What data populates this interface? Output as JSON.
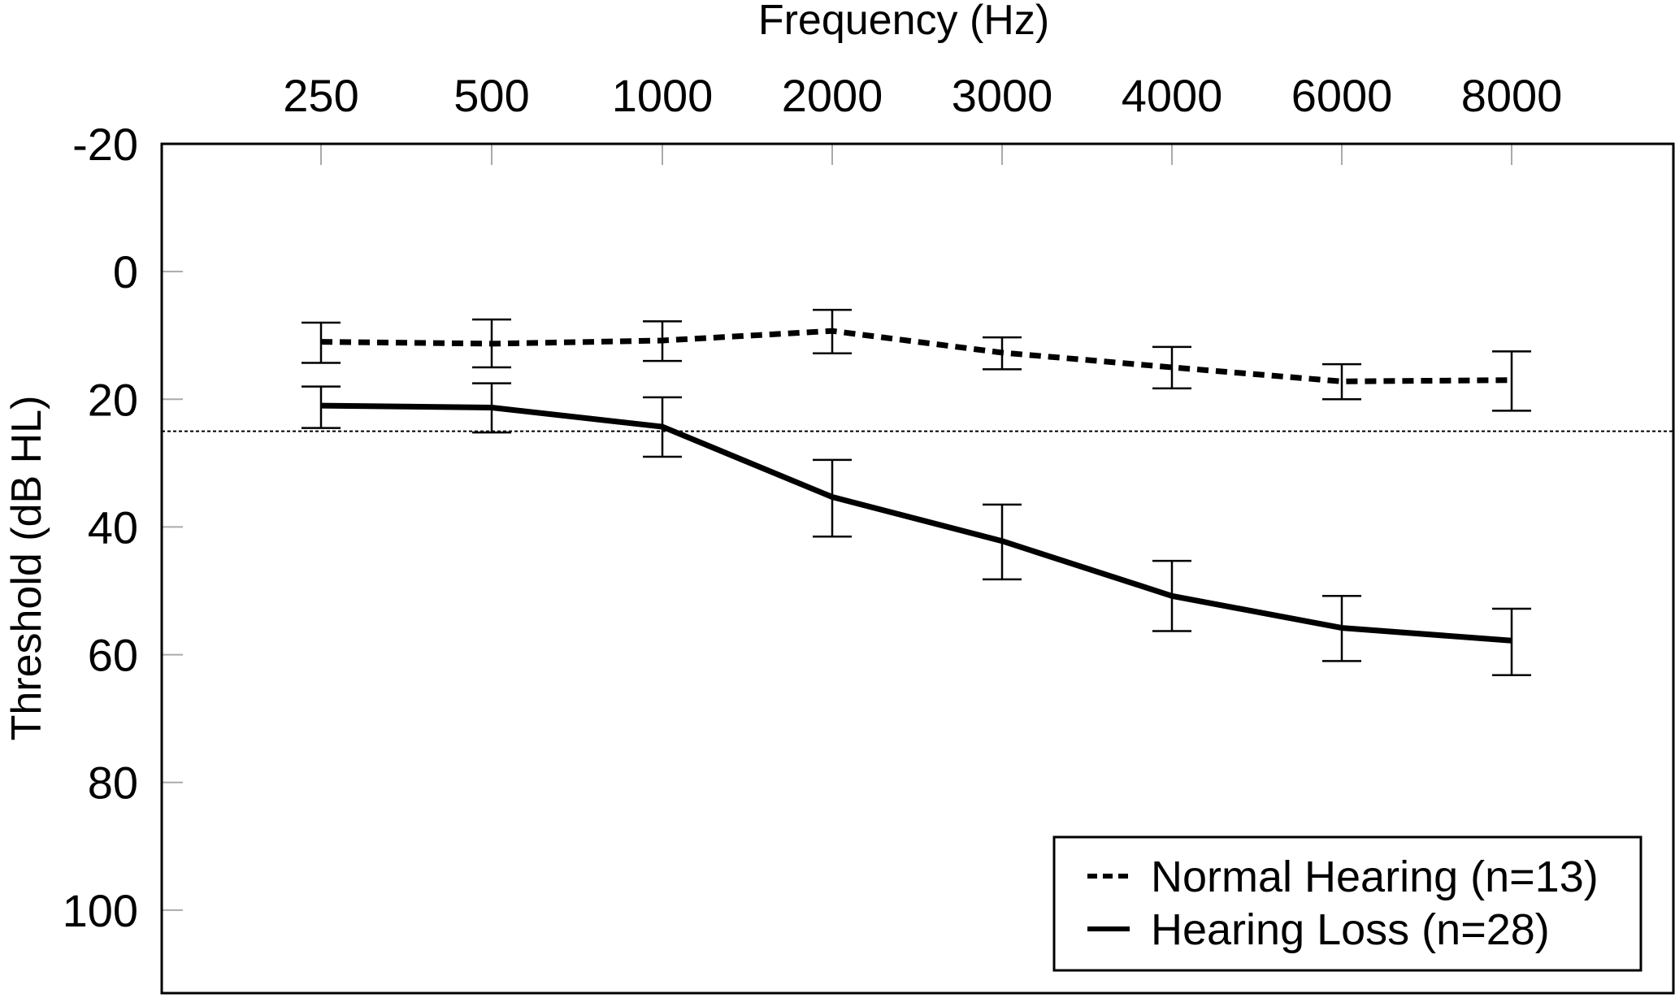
{
  "chart_data": {
    "type": "line",
    "title": "",
    "xlabel": "Frequency (Hz)",
    "ylabel": "Threshold (dB HL)",
    "x_axis_position": "top",
    "y_inverted": true,
    "categories": [
      "250",
      "500",
      "1000",
      "2000",
      "3000",
      "4000",
      "6000",
      "8000"
    ],
    "ylim": [
      -20,
      113
    ],
    "yticks": [
      -20,
      0,
      20,
      40,
      60,
      80,
      100
    ],
    "yticklabels": [
      "-20",
      "0",
      "20",
      "40",
      "60",
      "80",
      "100"
    ],
    "reference_line": {
      "y": 25,
      "style": "dotted"
    },
    "legend_position": "bottom-right",
    "series": [
      {
        "name": "Normal Hearing (n=13)",
        "style": "dashed",
        "values": [
          11,
          11.3,
          10.8,
          9.3,
          12.7,
          15,
          17.2,
          17
        ],
        "err_low": [
          8,
          7.5,
          7.8,
          6,
          10.3,
          11.8,
          14.5,
          12.5
        ],
        "err_high": [
          14.3,
          15,
          14,
          12.8,
          15.3,
          18.3,
          20,
          21.8
        ]
      },
      {
        "name": "Hearing Loss (n=28)",
        "style": "solid",
        "values": [
          21,
          21.3,
          24.3,
          35.3,
          42.2,
          50.8,
          55.8,
          57.8
        ],
        "err_low": [
          18,
          17.5,
          19.7,
          29.5,
          36.5,
          45.3,
          50.8,
          52.8
        ],
        "err_high": [
          24.5,
          25.2,
          29,
          41.5,
          48.2,
          56.3,
          61,
          63.2
        ]
      }
    ]
  }
}
